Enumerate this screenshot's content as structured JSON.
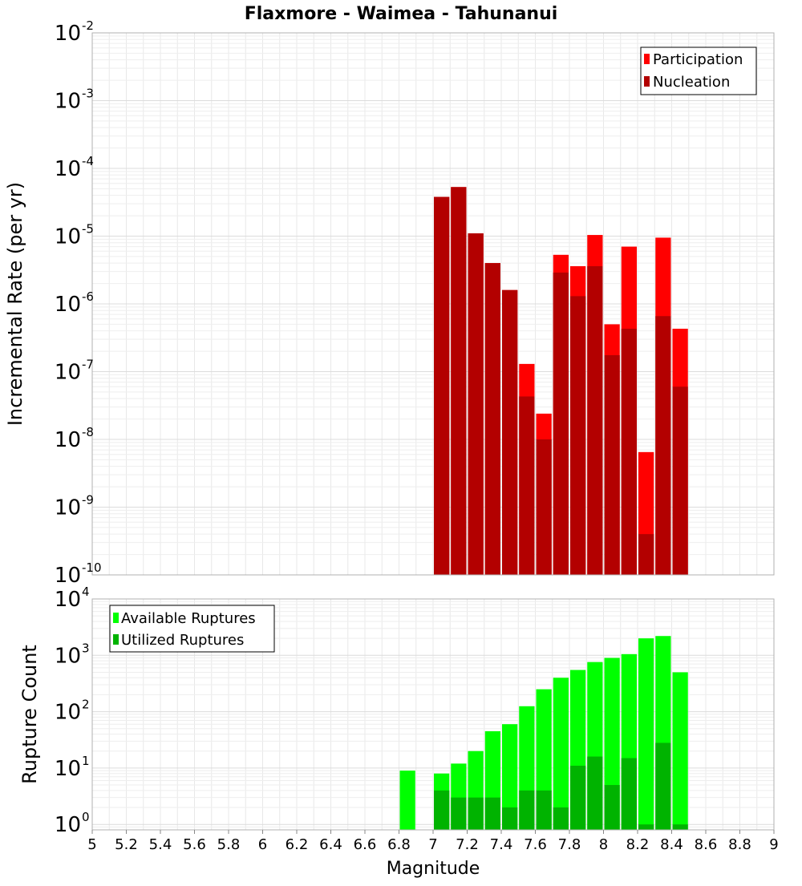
{
  "chart_data": [
    {
      "type": "bar",
      "title": "Flaxmore - Waimea - Tahunanui",
      "ylabel": "Incremental Rate (per yr)",
      "xlabel": "",
      "y_scale": "log",
      "ylim": [
        1e-10,
        0.01
      ],
      "xlim": [
        5,
        9
      ],
      "grid": true,
      "legend_position": "top-right",
      "x_ticks": [
        "5",
        "5.2",
        "5.4",
        "5.6",
        "5.8",
        "6",
        "6.2",
        "6.4",
        "6.6",
        "6.8",
        "7",
        "7.2",
        "7.4",
        "7.6",
        "7.8",
        "8",
        "8.2",
        "8.4",
        "8.6",
        "8.8",
        "9"
      ],
      "y_ticks": [
        {
          "base": "10",
          "exp": "-10",
          "value": 1e-10
        },
        {
          "base": "10",
          "exp": "-9",
          "value": 1e-09
        },
        {
          "base": "10",
          "exp": "-8",
          "value": 1e-08
        },
        {
          "base": "10",
          "exp": "-7",
          "value": 1e-07
        },
        {
          "base": "10",
          "exp": "-6",
          "value": 1e-06
        },
        {
          "base": "10",
          "exp": "-5",
          "value": 1e-05
        },
        {
          "base": "10",
          "exp": "-4",
          "value": 0.0001
        },
        {
          "base": "10",
          "exp": "-3",
          "value": 0.001
        },
        {
          "base": "10",
          "exp": "-2",
          "value": 0.01
        }
      ],
      "x": [
        7.05,
        7.15,
        7.25,
        7.35,
        7.45,
        7.55,
        7.65,
        7.75,
        7.85,
        7.95,
        8.05,
        8.15,
        8.25,
        8.35,
        8.45
      ],
      "bin_width": 0.1,
      "series": [
        {
          "name": "Participation",
          "color": "#ff0000",
          "values": [
            3.8e-05,
            5.3e-05,
            1.1e-05,
            4e-06,
            1.6e-06,
            1.3e-07,
            2.4e-08,
            5.3e-06,
            3.6e-06,
            1.04e-05,
            5e-07,
            7e-06,
            6.5e-09,
            9.5e-06,
            4.3e-07
          ]
        },
        {
          "name": "Nucleation",
          "color": "#b30000",
          "values": [
            3.8e-05,
            5.3e-05,
            1.1e-05,
            4e-06,
            1.6e-06,
            4.3e-08,
            1e-08,
            2.9e-06,
            1.3e-06,
            3.6e-06,
            1.75e-07,
            4.3e-07,
            4e-10,
            6.6e-07,
            6e-08
          ]
        }
      ]
    },
    {
      "type": "bar",
      "title": "",
      "ylabel": "Rupture Count",
      "xlabel": "Magnitude",
      "y_scale": "log",
      "ylim": [
        0.8,
        10000
      ],
      "xlim": [
        5,
        9
      ],
      "grid": true,
      "legend_position": "top-left",
      "x_ticks": [
        "5",
        "5.2",
        "5.4",
        "5.6",
        "5.8",
        "6",
        "6.2",
        "6.4",
        "6.6",
        "6.8",
        "7",
        "7.2",
        "7.4",
        "7.6",
        "7.8",
        "8",
        "8.2",
        "8.4",
        "8.6",
        "8.8",
        "9"
      ],
      "y_ticks": [
        {
          "base": "10",
          "exp": "0",
          "value": 1
        },
        {
          "base": "10",
          "exp": "1",
          "value": 10
        },
        {
          "base": "10",
          "exp": "2",
          "value": 100
        },
        {
          "base": "10",
          "exp": "3",
          "value": 1000
        },
        {
          "base": "10",
          "exp": "4",
          "value": 10000
        }
      ],
      "x": [
        6.85,
        7.05,
        7.15,
        7.25,
        7.35,
        7.45,
        7.55,
        7.65,
        7.75,
        7.85,
        7.95,
        8.05,
        8.15,
        8.25,
        8.35,
        8.45
      ],
      "bin_width": 0.1,
      "series": [
        {
          "name": "Available Ruptures",
          "color": "#00ff00",
          "values": [
            9,
            8,
            12,
            20,
            45,
            60,
            125,
            250,
            400,
            550,
            760,
            900,
            1050,
            2000,
            2200,
            500
          ]
        },
        {
          "name": "Utilized Ruptures",
          "color": "#00b300",
          "values": [
            0,
            4,
            3,
            3,
            3,
            2,
            4,
            4,
            2,
            11,
            16,
            5,
            15,
            1,
            28,
            1
          ]
        }
      ]
    }
  ]
}
